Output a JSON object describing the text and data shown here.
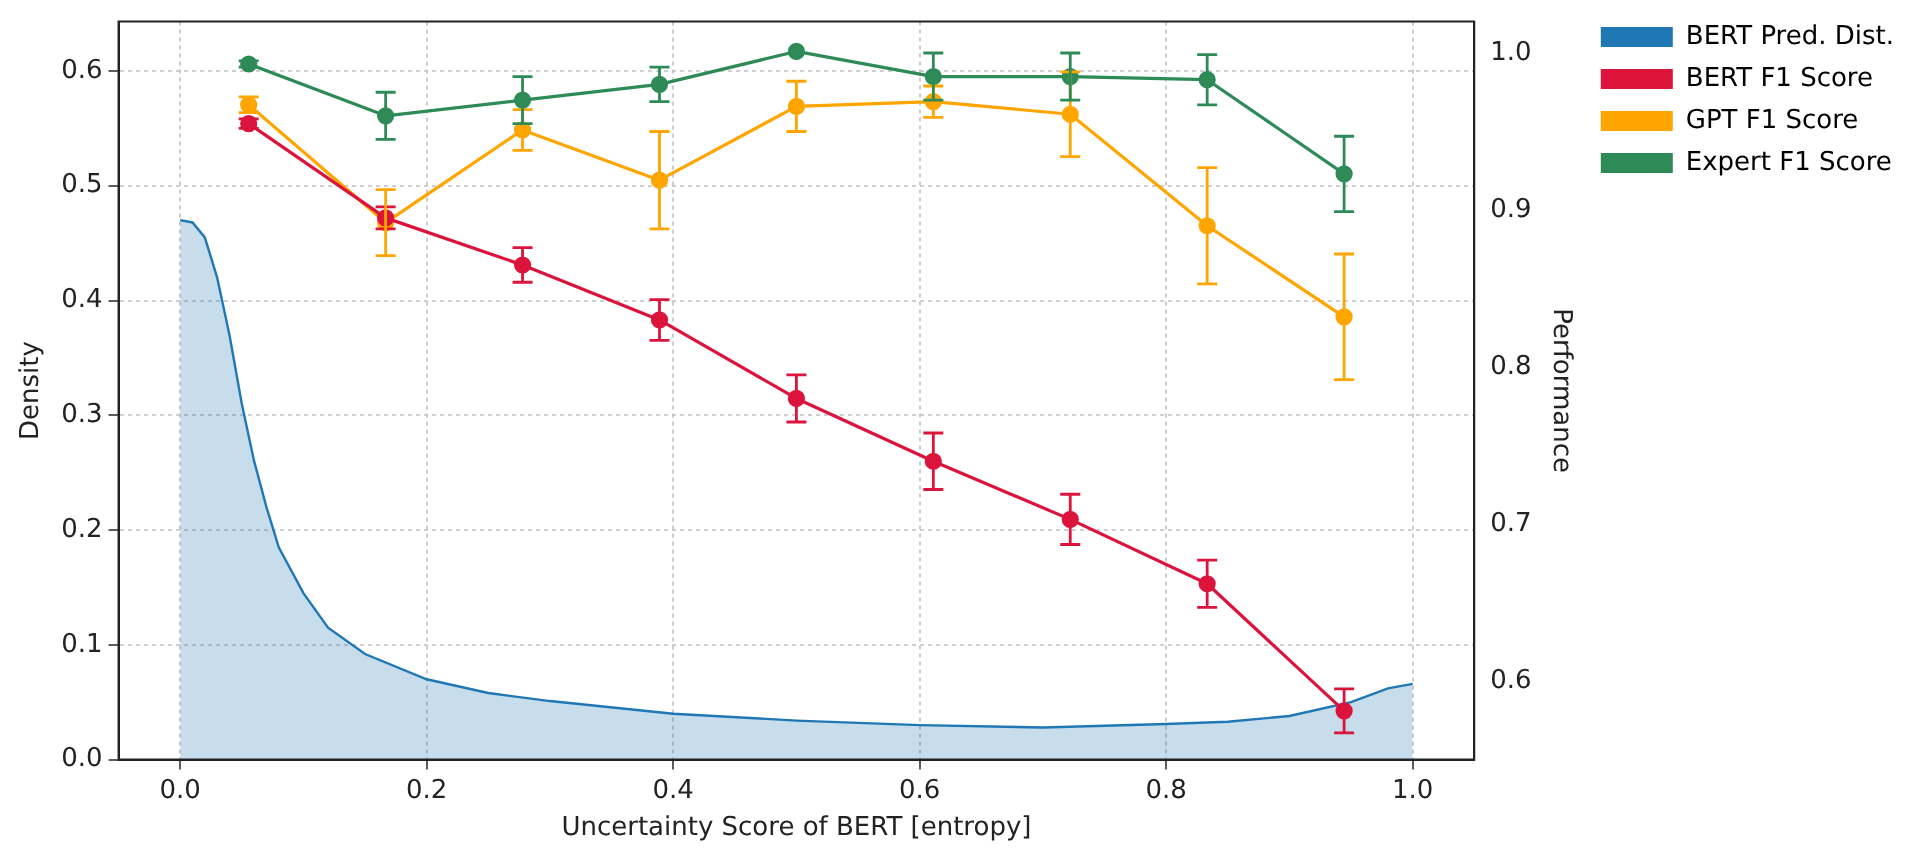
{
  "chart_data": {
    "type": "line",
    "xlabel": "Uncertainty Score of BERT [entropy]",
    "ylabel": "Density",
    "y2label": "Performance",
    "xlim": [
      -0.05,
      1.05
    ],
    "xticks": [
      {
        "value": 0,
        "label": "0.0"
      },
      0.2,
      0.4,
      0.6,
      0.8,
      {
        "value": 1,
        "label": "1.0"
      }
    ],
    "ylim": [
      0,
      0.643
    ],
    "yticks": [
      {
        "value": 0,
        "label": "0.0"
      },
      0.1,
      0.2,
      0.3,
      0.4,
      0.5,
      0.6
    ],
    "y2lim": [
      0.55,
      1.02
    ],
    "y2ticks": [
      0.6,
      0.7,
      0.8,
      0.9,
      {
        "value": 1,
        "label": "1.0"
      }
    ],
    "x": [
      0.0556,
      0.1667,
      0.2778,
      0.3889,
      0.5,
      0.6111,
      0.7222,
      0.8333,
      0.9444
    ],
    "grid": true,
    "legend": "top right",
    "marker": "circle",
    "series": [
      {
        "name": "BERT Pred. Dist.",
        "type": "area",
        "marker": "none",
        "color": "#1f77b4",
        "x": [
          0,
          0.01,
          0.02,
          0.03,
          0.04,
          0.05,
          0.06,
          0.07,
          0.08,
          0.1,
          0.12,
          0.15,
          0.2,
          0.25,
          0.3,
          0.4,
          0.5,
          0.6,
          0.7,
          0.8,
          0.85,
          0.9,
          0.95,
          0.98,
          1.0
        ],
        "values": [
          0.47,
          0.468,
          0.455,
          0.42,
          0.37,
          0.31,
          0.26,
          0.22,
          0.185,
          0.145,
          0.115,
          0.092,
          0.07,
          0.058,
          0.051,
          0.04,
          0.034,
          0.03,
          0.028,
          0.031,
          0.033,
          0.038,
          0.05,
          0.062,
          0.066
        ]
      },
      {
        "name": "BERT F1 Score",
        "axis": "y2",
        "color": "#dc143c",
        "values": [
          0.955,
          0.895,
          0.865,
          0.83,
          0.78,
          0.74,
          0.703,
          0.662,
          0.581
        ],
        "errors": [
          0.003,
          0.007,
          0.011,
          0.013,
          0.015,
          0.018,
          0.016,
          0.015,
          0.014
        ]
      },
      {
        "name": "GPT F1 Score",
        "axis": "y2",
        "color": "#ffa500",
        "values": [
          0.967,
          0.892,
          0.951,
          0.919,
          0.966,
          0.969,
          0.961,
          0.89,
          0.832
        ],
        "errors": [
          0.005,
          0.021,
          0.013,
          0.031,
          0.016,
          0.01,
          0.027,
          0.037,
          0.04
        ]
      },
      {
        "name": "Expert F1 Score",
        "axis": "y2",
        "color": "#2e8b57",
        "values": [
          0.993,
          0.96,
          0.97,
          0.98,
          1.001,
          0.985,
          0.985,
          0.983,
          0.923
        ],
        "errors": [
          0.002,
          0.015,
          0.015,
          0.011,
          null,
          0.015,
          0.015,
          0.016,
          0.024
        ]
      }
    ]
  }
}
